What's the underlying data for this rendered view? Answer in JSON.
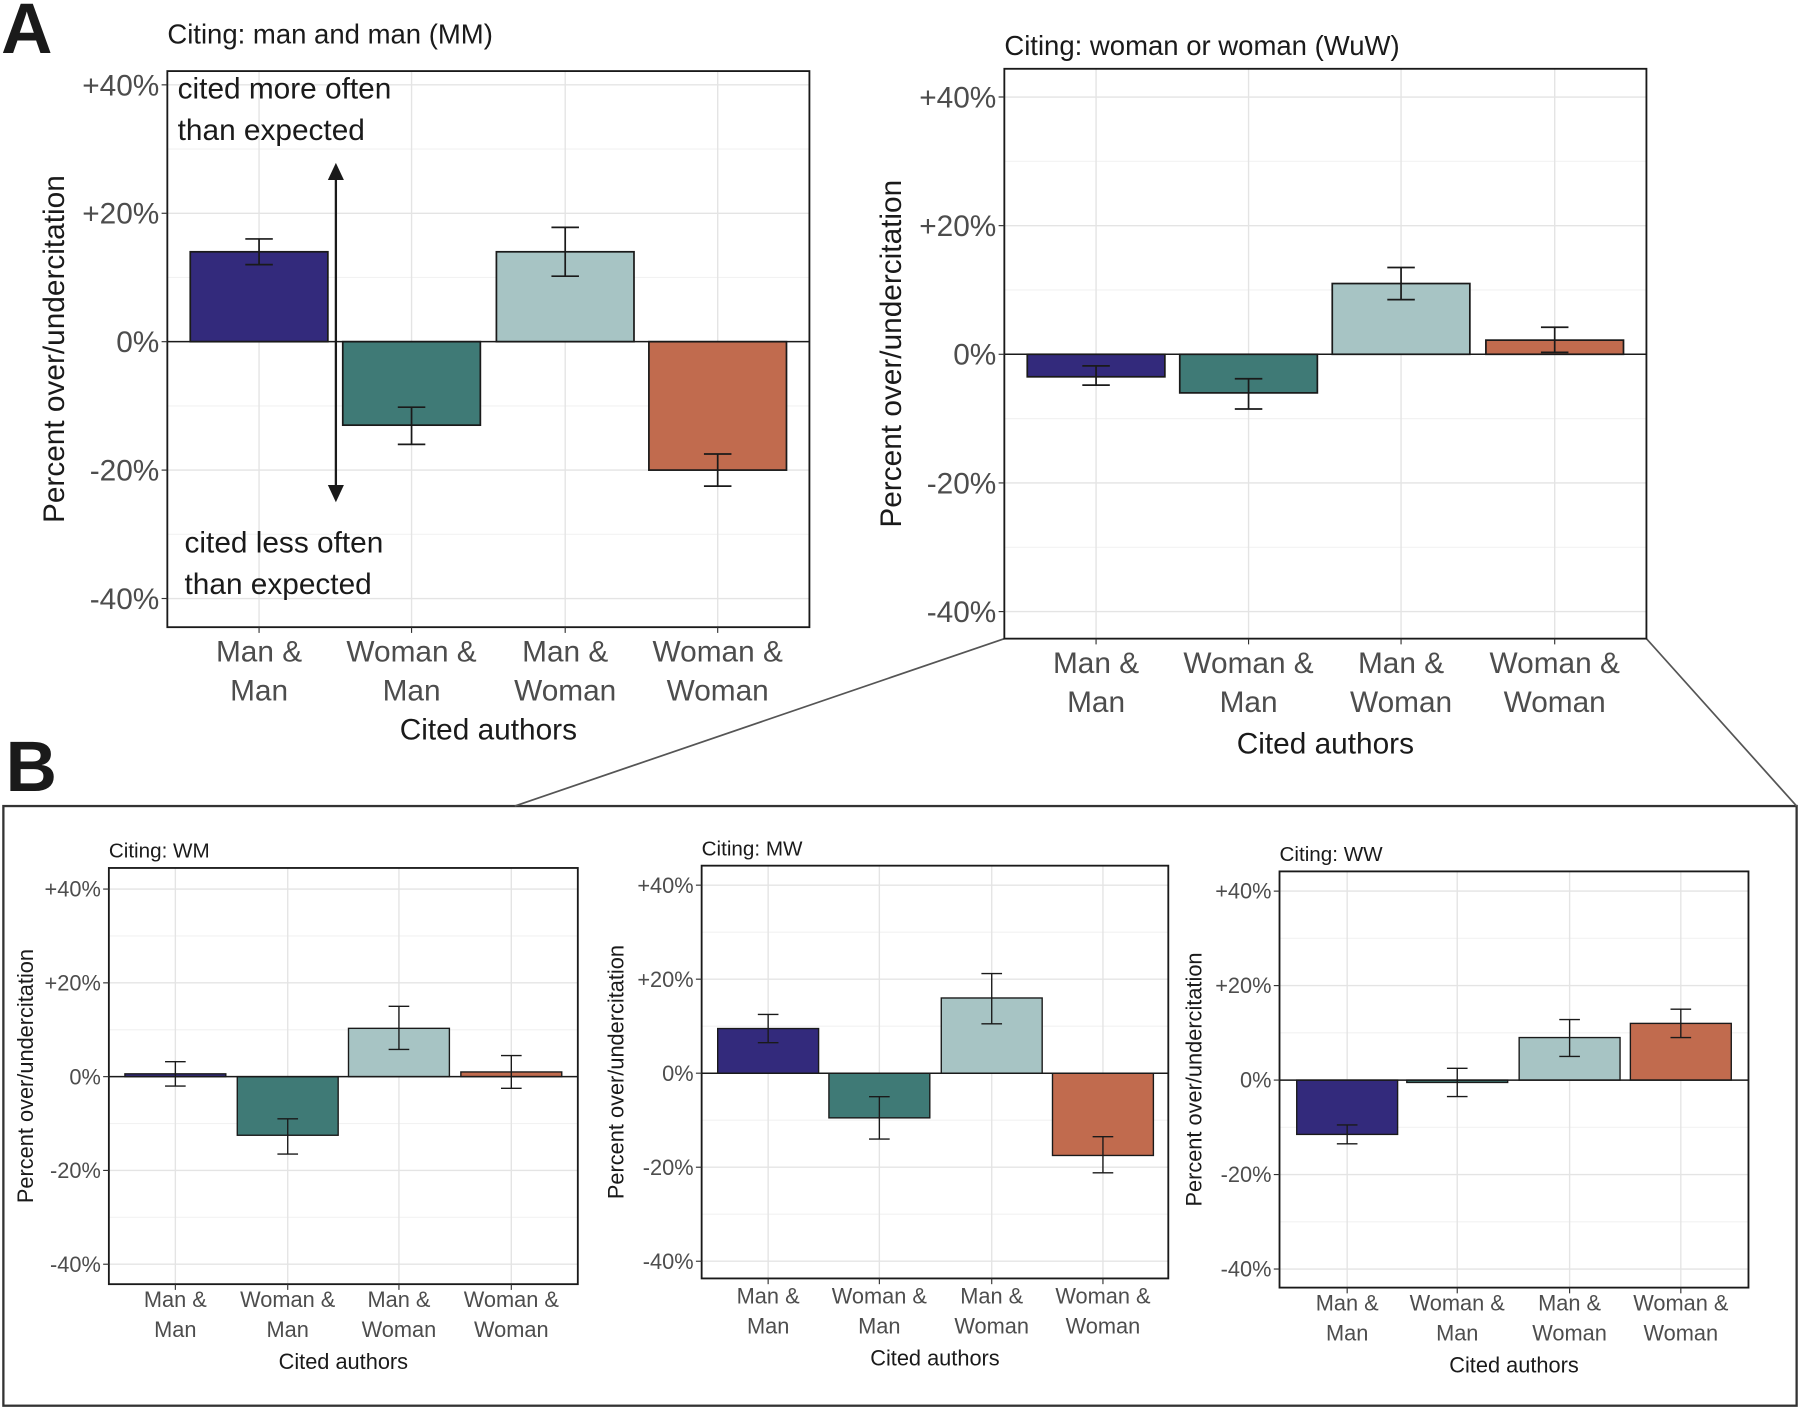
{
  "panel_labels": {
    "a": "A",
    "b": "B"
  },
  "annotations": {
    "more_line1": "cited more often",
    "more_line2": "than expected",
    "less_line1": "cited less often",
    "less_line2": "than expected"
  },
  "colors": {
    "man_man": "#332a7c",
    "woman_man": "#3f7a76",
    "man_woman": "#a7c4c4",
    "woman_woman": "#c16b4e"
  },
  "chart_data": [
    {
      "type": "bar",
      "title": "Citing: man and man (MM)",
      "xlabel": "Cited authors",
      "ylabel": "Percent over/undercitation",
      "ylim": [
        -45,
        45
      ],
      "yticks": [
        "+40%",
        "+20%",
        "0%",
        "-20%",
        "-40%"
      ],
      "ytick_values": [
        40,
        20,
        0,
        -20,
        -40
      ],
      "categories": [
        [
          "Man &",
          "Man"
        ],
        [
          "Woman &",
          "Man"
        ],
        [
          "Man &",
          "Woman"
        ],
        [
          "Woman &",
          "Woman"
        ]
      ],
      "values": [
        14,
        -13,
        14,
        -20
      ],
      "error_low": [
        12,
        -10.2,
        10.2,
        -17.5
      ],
      "error_high": [
        16,
        -16,
        17.8,
        -22.5
      ]
    },
    {
      "type": "bar",
      "title": "Citing: woman or woman (WuW)",
      "xlabel": "Cited authors",
      "ylabel": "Percent over/undercitation",
      "ylim": [
        -45,
        45
      ],
      "yticks": [
        "+40%",
        "+20%",
        "0%",
        "-20%",
        "-40%"
      ],
      "ytick_values": [
        40,
        20,
        0,
        -20,
        -40
      ],
      "categories": [
        [
          "Man &",
          "Man"
        ],
        [
          "Woman &",
          "Man"
        ],
        [
          "Man &",
          "Woman"
        ],
        [
          "Woman &",
          "Woman"
        ]
      ],
      "values": [
        -3.5,
        -6,
        11,
        2.2
      ],
      "error_low": [
        -1.8,
        -3.8,
        8.5,
        0.3
      ],
      "error_high": [
        -4.8,
        -8.5,
        13.5,
        4.2
      ]
    },
    {
      "type": "bar",
      "title": "Citing: WM",
      "xlabel": "Cited authors",
      "ylabel": "Percent over/undercitation",
      "ylim": [
        -45,
        45
      ],
      "yticks": [
        "+40%",
        "+20%",
        "0%",
        "-20%",
        "-40%"
      ],
      "ytick_values": [
        40,
        20,
        0,
        -20,
        -40
      ],
      "categories": [
        [
          "Man &",
          "Man"
        ],
        [
          "Woman &",
          "Man"
        ],
        [
          "Man &",
          "Woman"
        ],
        [
          "Woman &",
          "Woman"
        ]
      ],
      "values": [
        0.6,
        -12.5,
        10.3,
        1
      ],
      "error_low": [
        -2,
        -9,
        5.8,
        -2.5
      ],
      "error_high": [
        3.2,
        -16.5,
        15,
        4.5
      ]
    },
    {
      "type": "bar",
      "title": "Citing: MW",
      "xlabel": "Cited authors",
      "ylabel": "Percent over/undercitation",
      "ylim": [
        -45,
        45
      ],
      "yticks": [
        "+40%",
        "+20%",
        "0%",
        "-20%",
        "-40%"
      ],
      "ytick_values": [
        40,
        20,
        0,
        -20,
        -40
      ],
      "categories": [
        [
          "Man &",
          "Man"
        ],
        [
          "Woman &",
          "Man"
        ],
        [
          "Man &",
          "Woman"
        ],
        [
          "Woman &",
          "Woman"
        ]
      ],
      "values": [
        9.5,
        -9.5,
        16,
        -17.5
      ],
      "error_low": [
        6.5,
        -5,
        10.5,
        -13.5
      ],
      "error_high": [
        12.5,
        -14,
        21.2,
        -21.2
      ]
    },
    {
      "type": "bar",
      "title": "Citing: WW",
      "xlabel": "Cited authors",
      "ylabel": "Percent over/undercitation",
      "ylim": [
        -45,
        45
      ],
      "yticks": [
        "+40%",
        "+20%",
        "0%",
        "-20%",
        "-40%"
      ],
      "ytick_values": [
        40,
        20,
        0,
        -20,
        -40
      ],
      "categories": [
        [
          "Man &",
          "Man"
        ],
        [
          "Woman &",
          "Man"
        ],
        [
          "Man &",
          "Woman"
        ],
        [
          "Woman &",
          "Woman"
        ]
      ],
      "values": [
        -11.5,
        -0.5,
        9,
        12
      ],
      "error_low": [
        -9.5,
        2.5,
        5,
        9
      ],
      "error_high": [
        -13.5,
        -3.5,
        12.8,
        15
      ]
    }
  ]
}
